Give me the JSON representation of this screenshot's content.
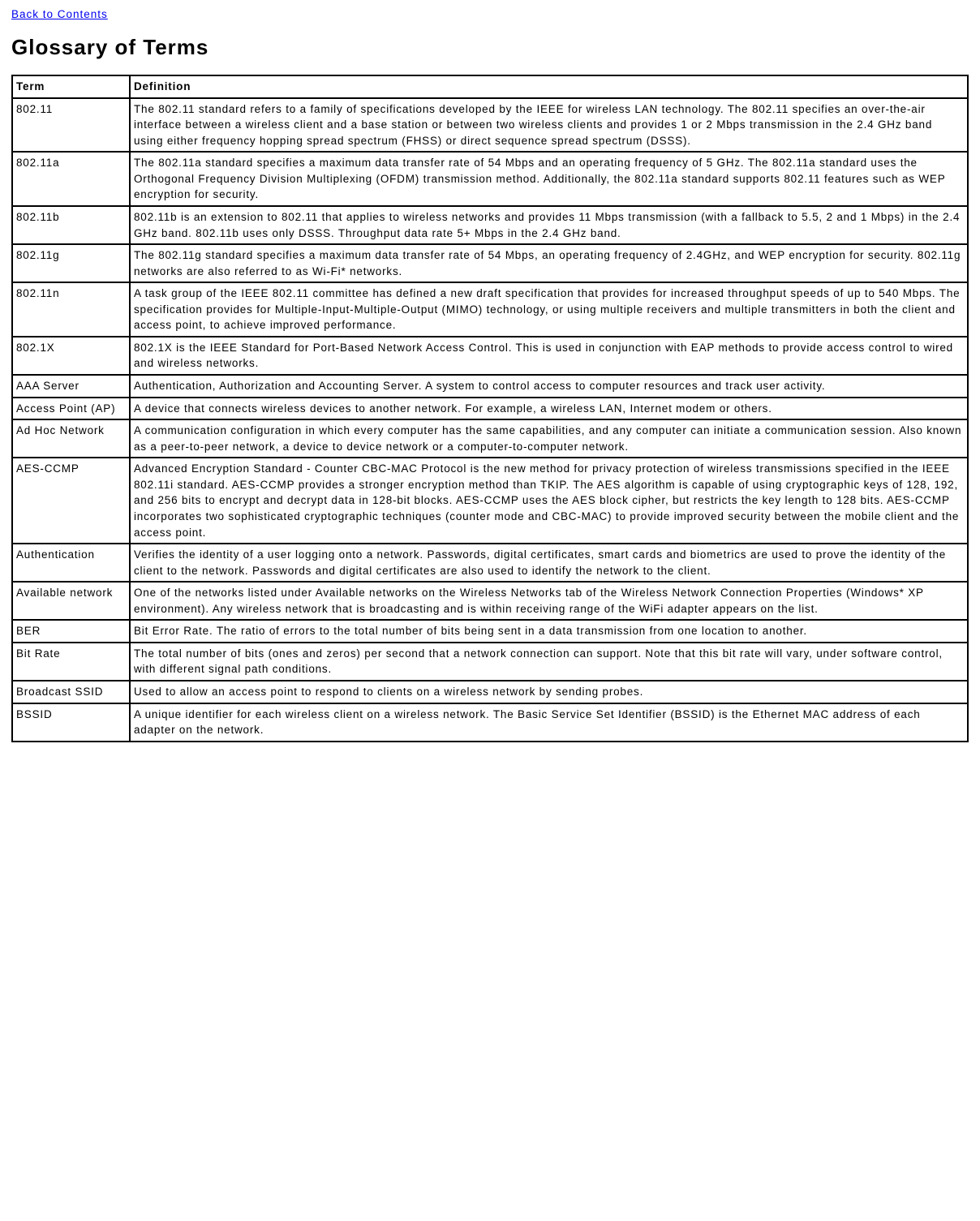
{
  "back_link": "Back to Contents",
  "page_title": "Glossary of Terms",
  "headers": {
    "term": "Term",
    "definition": "Definition"
  },
  "rows": [
    {
      "term": "802.11",
      "definition": "The 802.11 standard refers to a family of specifications developed by the IEEE for wireless LAN technology. The 802.11 specifies an over-the-air interface between a wireless client and a base station or between two wireless clients and provides 1 or 2 Mbps transmission in the 2.4 GHz band using either frequency hopping spread spectrum (FHSS) or direct sequence spread spectrum (DSSS)."
    },
    {
      "term": "802.11a",
      "definition": "The 802.11a standard specifies a maximum data transfer rate of 54 Mbps and an operating frequency of 5 GHz. The 802.11a standard uses the Orthogonal Frequency Division Multiplexing (OFDM) transmission method. Additionally, the 802.11a standard supports 802.11 features such as WEP encryption for security."
    },
    {
      "term": "802.11b",
      "definition": "802.11b is an extension to 802.11 that applies to wireless networks and provides 11 Mbps transmission (with a fallback to 5.5, 2 and 1 Mbps) in the 2.4 GHz band. 802.11b uses only DSSS. Throughput data rate 5+ Mbps in the 2.4 GHz band."
    },
    {
      "term": "802.11g",
      "definition": "The 802.11g standard specifies a maximum data transfer rate of 54 Mbps, an operating frequency of 2.4GHz, and WEP encryption for security. 802.11g networks are also referred to as Wi-Fi* networks."
    },
    {
      "term": "802.11n",
      "definition": "A task group of the IEEE 802.11 committee has defined a new draft specification that provides for increased throughput speeds of up to 540 Mbps. The specification provides for Multiple-Input-Multiple-Output (MIMO) technology, or using multiple receivers and multiple transmitters in both the client and access point, to achieve improved performance."
    },
    {
      "term": "802.1X",
      "definition": "802.1X is the IEEE Standard for Port-Based Network Access Control. This is used in conjunction with EAP methods to provide access control to wired and wireless networks."
    },
    {
      "term": "AAA Server",
      "definition": "Authentication, Authorization and Accounting Server. A system to control access to computer resources and track user activity."
    },
    {
      "term": "Access Point (AP)",
      "definition": "A device that connects wireless devices to another network. For example, a wireless LAN, Internet modem or others."
    },
    {
      "term": "Ad Hoc Network",
      "definition": "A communication configuration in which every computer has the same capabilities, and any computer can initiate a communication session. Also known as a peer-to-peer network, a device to device network or a computer-to-computer network."
    },
    {
      "term": "AES-CCMP",
      "definition": "Advanced Encryption Standard - Counter CBC-MAC Protocol is the new method for privacy protection of wireless transmissions specified in the IEEE 802.11i standard. AES-CCMP provides a stronger encryption method than TKIP. The AES algorithm is capable of using cryptographic keys of 128, 192, and 256 bits to encrypt and decrypt data in 128-bit blocks. AES-CCMP uses the AES block cipher, but restricts the key length to 128 bits. AES-CCMP incorporates two sophisticated cryptographic techniques (counter mode and CBC-MAC) to provide improved security between the mobile client and the access point."
    },
    {
      "term": "Authentication",
      "definition": "Verifies the identity of a user logging onto a network. Passwords, digital certificates, smart cards and biometrics are used to prove the identity of the client to the network. Passwords and digital certificates are also used to identify the network to the client."
    },
    {
      "term": "Available network",
      "definition": "One of the networks listed under Available networks on the Wireless Networks tab of the Wireless Network Connection Properties (Windows* XP environment). Any wireless network that is broadcasting and is within receiving range of the WiFi adapter appears on the list."
    },
    {
      "term": "BER",
      "definition": "Bit Error Rate. The ratio of errors to the total number of bits being sent in a data transmission from one location to another."
    },
    {
      "term": "Bit Rate",
      "definition": "The total number of bits (ones and zeros) per second that a network connection can support. Note that this bit rate will vary, under software control, with different signal path conditions."
    },
    {
      "term": "Broadcast SSID",
      "definition": "Used to allow an access point to respond to clients on a wireless network by sending probes."
    },
    {
      "term": "BSSID",
      "definition": "A unique identifier for each wireless client on a wireless network. The Basic Service Set Identifier (BSSID) is the Ethernet MAC address of each adapter on the network."
    }
  ]
}
